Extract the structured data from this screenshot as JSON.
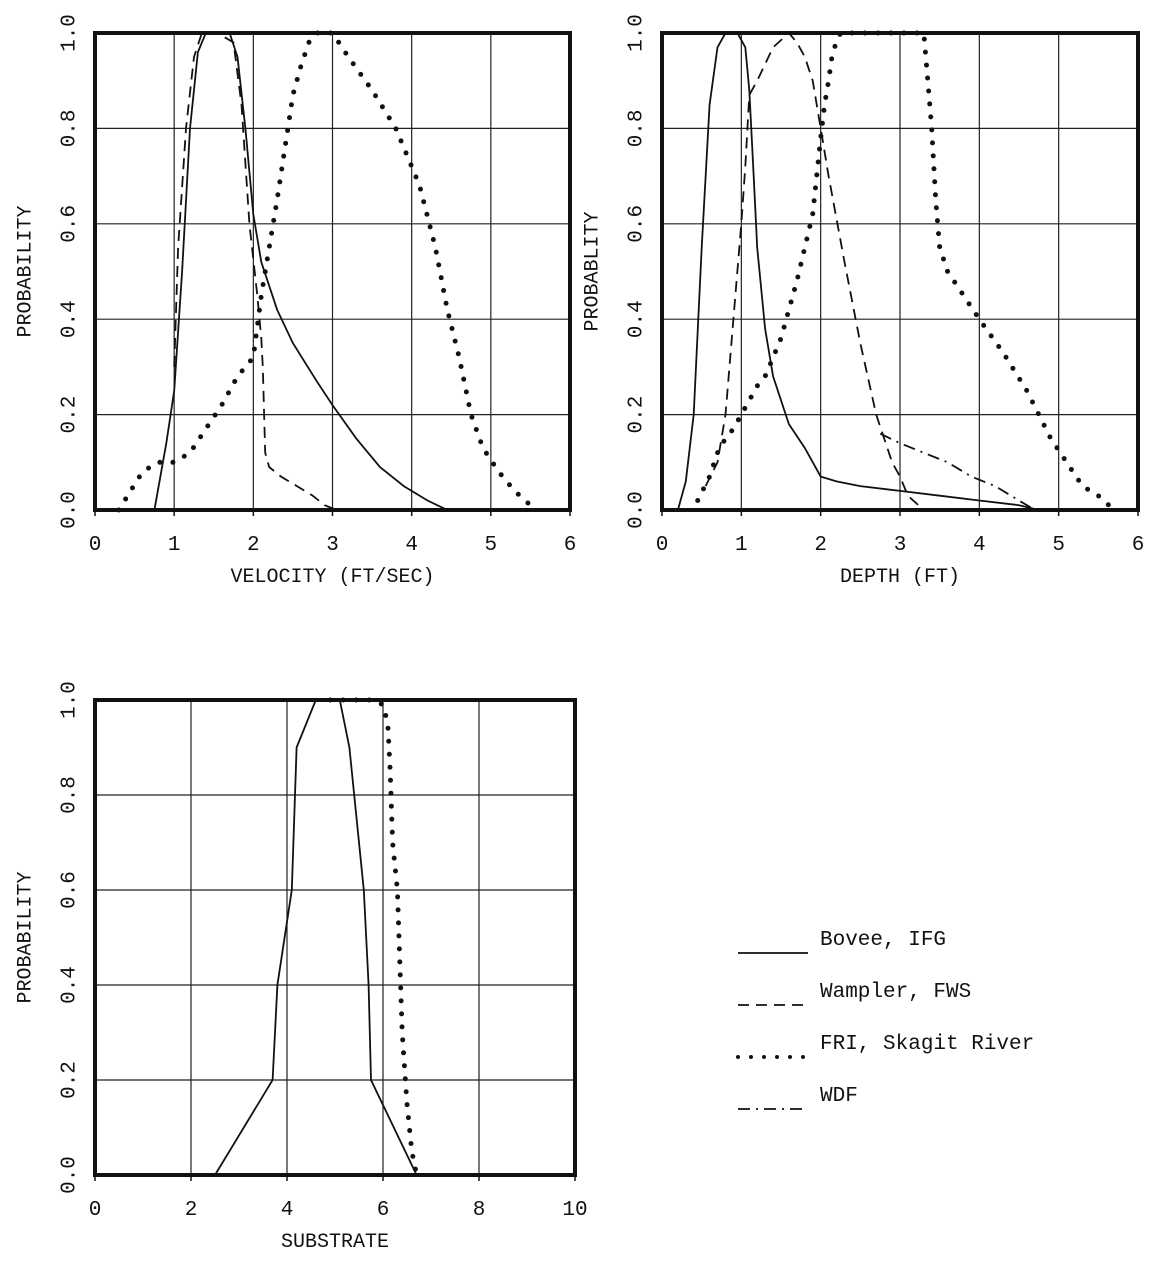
{
  "chart_data": [
    {
      "type": "line",
      "panel": "velocity",
      "xlabel": "VELOCITY (FT/SEC)",
      "ylabel": "PROBABILITY",
      "xlim": [
        0,
        6
      ],
      "ylim": [
        0,
        1
      ],
      "xticks": [
        "0",
        "1",
        "2",
        "3",
        "4",
        "5",
        "6"
      ],
      "yticks": [
        "0.0",
        "0.2",
        "0.4",
        "0.6",
        "0.8",
        "1.0"
      ],
      "grid": true,
      "series": [
        {
          "name": "Bovee, IFG",
          "style": "solid",
          "x": [
            0.75,
            0.9,
            1.0,
            1.1,
            1.2,
            1.3,
            1.4,
            1.55,
            1.7,
            1.8,
            1.9,
            2.0,
            2.1,
            2.3,
            2.5,
            2.8,
            3.0,
            3.3,
            3.6,
            3.9,
            4.2,
            4.45
          ],
          "y": [
            0.0,
            0.14,
            0.25,
            0.5,
            0.8,
            0.96,
            1.0,
            1.0,
            1.0,
            0.95,
            0.8,
            0.62,
            0.52,
            0.42,
            0.35,
            0.27,
            0.22,
            0.15,
            0.09,
            0.05,
            0.02,
            0.0
          ]
        },
        {
          "name": "Wampler, FWS",
          "style": "dashed",
          "x": [
            1.0,
            1.05,
            1.15,
            1.25,
            1.35,
            1.45,
            1.55,
            1.65,
            1.75,
            1.85,
            1.95,
            2.05,
            2.1,
            2.12,
            2.15,
            2.2,
            2.35,
            2.55,
            2.75,
            2.9,
            3.05
          ],
          "y": [
            0.3,
            0.55,
            0.8,
            0.95,
            1.0,
            1.0,
            1.0,
            0.99,
            0.98,
            0.85,
            0.6,
            0.45,
            0.36,
            0.3,
            0.12,
            0.09,
            0.07,
            0.05,
            0.03,
            0.01,
            0.0
          ]
        },
        {
          "name": "FRI, Skagit River",
          "style": "dotted",
          "x": [
            0.3,
            0.45,
            0.6,
            0.8,
            1.0,
            1.2,
            1.4,
            1.6,
            1.8,
            2.0,
            2.1,
            2.2,
            2.3,
            2.4,
            2.5,
            2.6,
            2.7,
            2.8,
            3.0,
            3.2,
            3.5,
            3.8,
            4.1,
            4.3,
            4.45,
            4.6,
            4.75,
            4.9,
            5.1,
            5.3,
            5.5,
            5.6
          ],
          "y": [
            0.0,
            0.04,
            0.08,
            0.1,
            0.1,
            0.12,
            0.17,
            0.22,
            0.28,
            0.32,
            0.45,
            0.55,
            0.65,
            0.76,
            0.87,
            0.93,
            0.98,
            1.0,
            1.0,
            0.95,
            0.88,
            0.8,
            0.68,
            0.55,
            0.42,
            0.32,
            0.2,
            0.13,
            0.08,
            0.04,
            0.01,
            0.0
          ]
        }
      ]
    },
    {
      "type": "line",
      "panel": "depth",
      "xlabel": "DEPTH (FT)",
      "ylabel": "PROBABLITY",
      "xlim": [
        0,
        6
      ],
      "ylim": [
        0,
        1
      ],
      "xticks": [
        "0",
        "1",
        "2",
        "3",
        "4",
        "5",
        "6"
      ],
      "yticks": [
        "0.0",
        "0.2",
        "0.4",
        "0.6",
        "0.8",
        "1.0"
      ],
      "grid": true,
      "series": [
        {
          "name": "Bovee, IFG",
          "style": "solid",
          "x": [
            0.2,
            0.3,
            0.4,
            0.5,
            0.6,
            0.7,
            0.8,
            0.95,
            1.05,
            1.1,
            1.15,
            1.2,
            1.3,
            1.4,
            1.6,
            1.8,
            2.0,
            2.2,
            2.5,
            3.0,
            3.5,
            4.0,
            4.5,
            4.75
          ],
          "y": [
            0.0,
            0.06,
            0.2,
            0.55,
            0.85,
            0.97,
            1.0,
            1.0,
            0.97,
            0.88,
            0.72,
            0.55,
            0.38,
            0.28,
            0.18,
            0.13,
            0.07,
            0.06,
            0.05,
            0.04,
            0.03,
            0.02,
            0.01,
            0.0
          ]
        },
        {
          "name": "Wampler, FWS",
          "style": "dashed",
          "x": [
            0.55,
            0.7,
            0.8,
            0.9,
            1.0,
            1.05,
            1.1,
            1.2,
            1.4,
            1.6,
            1.7,
            1.8,
            1.9,
            2.0,
            2.1,
            2.3,
            2.5,
            2.7,
            2.9,
            3.0,
            3.1,
            3.3
          ],
          "y": [
            0.05,
            0.1,
            0.2,
            0.4,
            0.6,
            0.72,
            0.87,
            0.9,
            0.97,
            1.0,
            0.98,
            0.95,
            0.9,
            0.8,
            0.7,
            0.52,
            0.35,
            0.2,
            0.1,
            0.07,
            0.03,
            0.0
          ]
        },
        {
          "name": "FRI, Skagit River",
          "style": "dotted",
          "x": [
            0.45,
            0.6,
            0.7,
            0.8,
            0.9,
            1.0,
            1.1,
            1.2,
            1.3,
            1.4,
            1.5,
            1.6,
            1.7,
            1.8,
            1.9,
            1.95,
            2.0,
            2.05,
            2.1,
            2.15,
            2.25,
            3.3,
            3.35,
            3.4,
            3.45,
            3.5,
            3.6,
            3.8,
            4.0,
            4.3,
            4.6,
            4.9,
            5.1,
            5.3,
            5.5,
            5.7
          ],
          "y": [
            0.02,
            0.07,
            0.12,
            0.15,
            0.17,
            0.2,
            0.23,
            0.26,
            0.28,
            0.32,
            0.36,
            0.42,
            0.48,
            0.55,
            0.62,
            0.7,
            0.78,
            0.85,
            0.9,
            0.96,
            1.0,
            1.0,
            0.9,
            0.8,
            0.65,
            0.55,
            0.5,
            0.45,
            0.4,
            0.33,
            0.25,
            0.15,
            0.1,
            0.05,
            0.03,
            0.0
          ]
        },
        {
          "name": "WDF",
          "style": "dashdot",
          "x": [
            2.75,
            3.0,
            3.3,
            3.6,
            3.9,
            4.2,
            4.5,
            4.7
          ],
          "y": [
            0.16,
            0.14,
            0.12,
            0.1,
            0.07,
            0.05,
            0.02,
            0.0
          ]
        }
      ]
    },
    {
      "type": "line",
      "panel": "substrate",
      "xlabel": "SUBSTRATE",
      "ylabel": "PROBABILITY",
      "xlim": [
        0,
        10
      ],
      "ylim": [
        0,
        1
      ],
      "xticks": [
        "0",
        "2",
        "4",
        "6",
        "8",
        "10"
      ],
      "yticks": [
        "0.0",
        "0.2",
        "0.4",
        "0.6",
        "0.8",
        "1.0"
      ],
      "grid": true,
      "series": [
        {
          "name": "Bovee, IFG",
          "style": "solid",
          "x": [
            2.5,
            3.7,
            3.8,
            4.1,
            4.2,
            4.6,
            5.1,
            5.3,
            5.6,
            5.7,
            5.75,
            6.7
          ],
          "y": [
            0.0,
            0.2,
            0.4,
            0.6,
            0.9,
            1.0,
            1.0,
            0.9,
            0.6,
            0.4,
            0.2,
            0.0
          ]
        },
        {
          "name": "FRI, Skagit River",
          "style": "dotted",
          "x": [
            4.9,
            5.4,
            5.8,
            6.0,
            6.1,
            6.15,
            6.2,
            6.3,
            6.35,
            6.4,
            6.5,
            6.6,
            6.7
          ],
          "y": [
            1.0,
            1.0,
            1.0,
            0.99,
            0.95,
            0.85,
            0.7,
            0.6,
            0.45,
            0.3,
            0.15,
            0.05,
            0.0
          ]
        }
      ]
    }
  ],
  "legend": {
    "position": "bottom-right",
    "items": [
      {
        "label": "Bovee, IFG",
        "style": "solid"
      },
      {
        "label": "Wampler, FWS",
        "style": "dashed"
      },
      {
        "label": "FRI, Skagit River",
        "style": "dotted"
      },
      {
        "label": "WDF",
        "style": "dashdot"
      }
    ]
  }
}
